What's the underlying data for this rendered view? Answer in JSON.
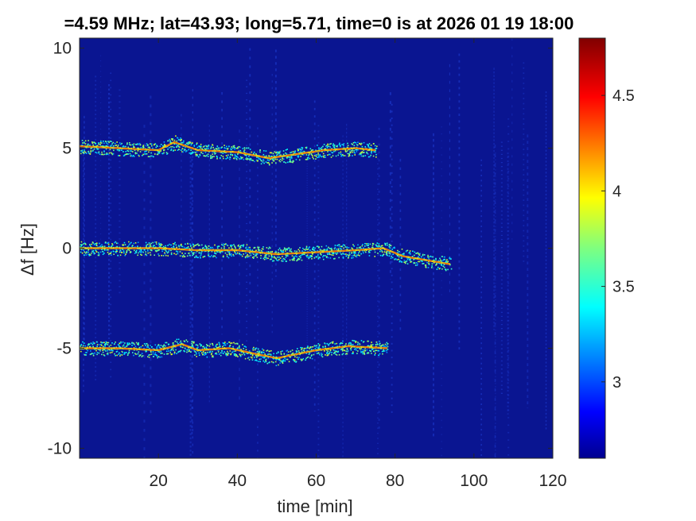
{
  "chart_data": {
    "type": "heatmap",
    "title": "=4.59 MHz;  lat=43.93; long=5.71, time=0 is at 2026 01 19 18:00",
    "xlabel": "time [min]",
    "ylabel": "Δf [Hz]",
    "xlim": [
      0,
      120
    ],
    "ylim": [
      -10.5,
      10.5
    ],
    "xticks": [
      20,
      40,
      60,
      80,
      100,
      120
    ],
    "yticks": [
      10,
      5,
      0,
      -5,
      -10
    ],
    "colorbar": {
      "range": [
        2.6,
        4.8
      ],
      "ticks": [
        3,
        3.5,
        4,
        4.5
      ],
      "colormap": "jet"
    },
    "background_color": "#0a1591",
    "series": [
      {
        "points": [
          {
            "t": 0,
            "f": 5.1
          },
          {
            "t": 10,
            "f": 5.0
          },
          {
            "t": 20,
            "f": 4.9
          },
          {
            "t": 24,
            "f": 5.3
          },
          {
            "t": 30,
            "f": 4.9
          },
          {
            "t": 40,
            "f": 4.8
          },
          {
            "t": 48,
            "f": 4.5
          },
          {
            "t": 55,
            "f": 4.7
          },
          {
            "t": 62,
            "f": 4.9
          },
          {
            "t": 70,
            "f": 5.0
          },
          {
            "t": 75,
            "f": 4.9
          }
        ]
      },
      {
        "points": [
          {
            "t": 0,
            "f": 0.0
          },
          {
            "t": 10,
            "f": 0.0
          },
          {
            "t": 20,
            "f": 0.0
          },
          {
            "t": 30,
            "f": -0.1
          },
          {
            "t": 40,
            "f": -0.1
          },
          {
            "t": 50,
            "f": -0.3
          },
          {
            "t": 60,
            "f": -0.2
          },
          {
            "t": 70,
            "f": -0.1
          },
          {
            "t": 77,
            "f": 0.0
          },
          {
            "t": 82,
            "f": -0.4
          },
          {
            "t": 88,
            "f": -0.6
          },
          {
            "t": 94,
            "f": -0.8
          }
        ]
      },
      {
        "points": [
          {
            "t": 0,
            "f": -5.0
          },
          {
            "t": 10,
            "f": -5.0
          },
          {
            "t": 20,
            "f": -5.1
          },
          {
            "t": 26,
            "f": -4.8
          },
          {
            "t": 30,
            "f": -5.1
          },
          {
            "t": 38,
            "f": -5.0
          },
          {
            "t": 45,
            "f": -5.3
          },
          {
            "t": 50,
            "f": -5.5
          },
          {
            "t": 60,
            "f": -5.1
          },
          {
            "t": 68,
            "f": -4.9
          },
          {
            "t": 78,
            "f": -5.0
          }
        ]
      }
    ]
  }
}
